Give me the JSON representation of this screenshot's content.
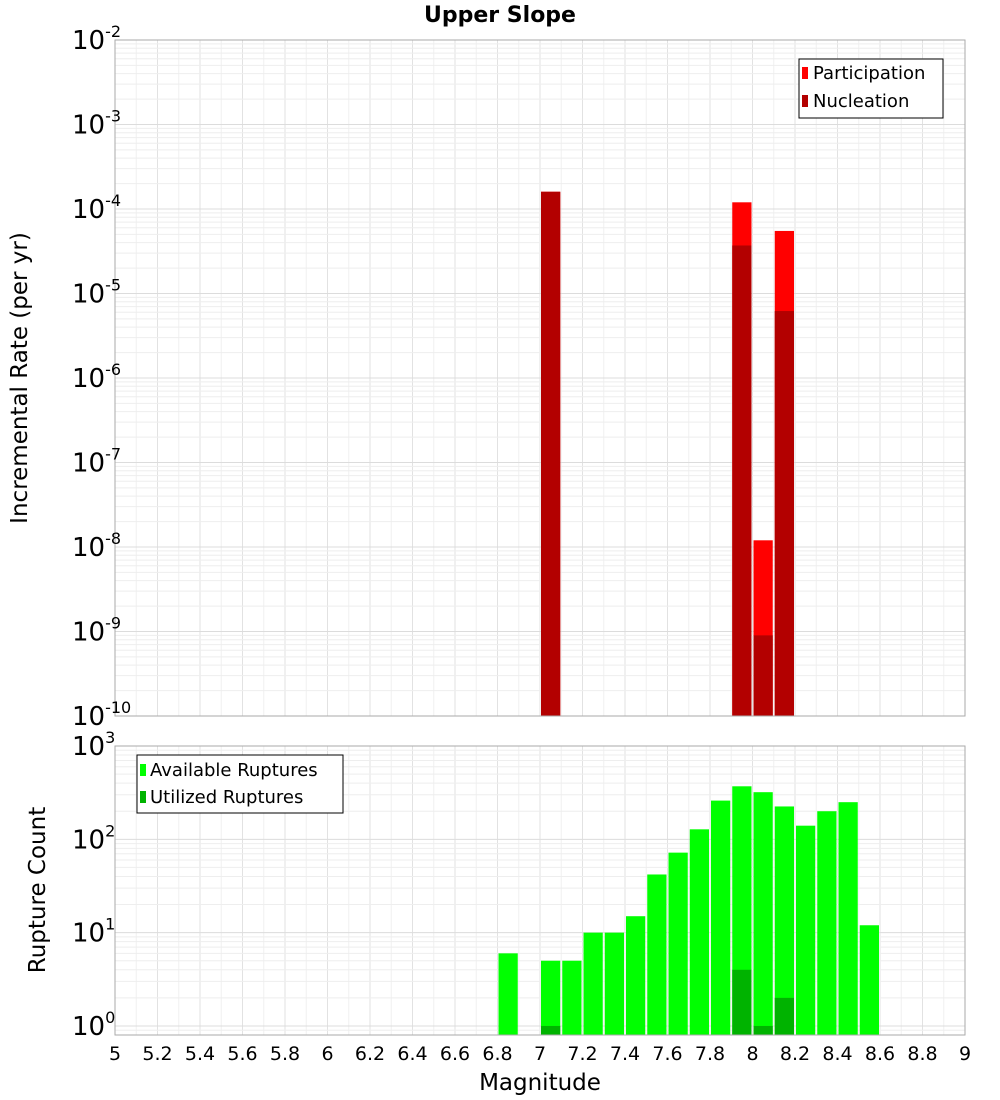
{
  "title": "Upper Slope",
  "chart_data": [
    {
      "type": "bar",
      "panel": "top",
      "title": "Upper Slope",
      "xlabel": "",
      "ylabel": "Incremental Rate (per yr)",
      "yscale": "log",
      "ylim": [
        1e-10,
        0.01
      ],
      "xlim": [
        5,
        9
      ],
      "bar_width": 0.1,
      "grid": true,
      "legend_position": "top-right",
      "y_ticks": [
        {
          "base": "10",
          "exp": "-2"
        },
        {
          "base": "10",
          "exp": "-3"
        },
        {
          "base": "10",
          "exp": "-4"
        },
        {
          "base": "10",
          "exp": "-5"
        },
        {
          "base": "10",
          "exp": "-6"
        },
        {
          "base": "10",
          "exp": "-7"
        },
        {
          "base": "10",
          "exp": "-8"
        },
        {
          "base": "10",
          "exp": "-9"
        },
        {
          "base": "10",
          "exp": "-10"
        }
      ],
      "series": [
        {
          "name": "Participation",
          "color": "#ff0000",
          "x": [
            7.05,
            7.95,
            8.05,
            8.15
          ],
          "values": [
            0.00016,
            0.00012,
            1.2e-08,
            5.5e-05
          ]
        },
        {
          "name": "Nucleation",
          "color": "#b30000",
          "x": [
            7.05,
            7.95,
            8.05,
            8.15
          ],
          "values": [
            0.00016,
            3.7e-05,
            9e-10,
            6.2e-06
          ]
        }
      ]
    },
    {
      "type": "bar",
      "panel": "bottom",
      "xlabel": "Magnitude",
      "ylabel": "Rupture Count",
      "yscale": "log",
      "ylim": [
        0.8,
        1000
      ],
      "xlim": [
        5,
        9
      ],
      "bar_width": 0.1,
      "grid": true,
      "legend_position": "top-left",
      "x_ticks": [
        "5",
        "5.2",
        "5.4",
        "5.6",
        "5.8",
        "6",
        "6.2",
        "6.4",
        "6.6",
        "6.8",
        "7",
        "7.2",
        "7.4",
        "7.6",
        "7.8",
        "8",
        "8.2",
        "8.4",
        "8.6",
        "8.8",
        "9"
      ],
      "y_ticks": [
        {
          "base": "10",
          "exp": "3"
        },
        {
          "base": "10",
          "exp": "2"
        },
        {
          "base": "10",
          "exp": "1"
        },
        {
          "base": "10",
          "exp": "0"
        }
      ],
      "series": [
        {
          "name": "Available Ruptures",
          "color": "#00ff00",
          "x": [
            6.85,
            7.05,
            7.15,
            7.25,
            7.35,
            7.45,
            7.55,
            7.65,
            7.75,
            7.85,
            7.95,
            8.05,
            8.15,
            8.25,
            8.35,
            8.45,
            8.55
          ],
          "values": [
            6,
            5,
            5,
            10,
            10,
            15,
            42,
            72,
            128,
            260,
            370,
            320,
            225,
            140,
            200,
            250,
            12
          ]
        },
        {
          "name": "Utilized Ruptures",
          "color": "#00b300",
          "x": [
            7.05,
            7.95,
            8.05,
            8.15
          ],
          "values": [
            1,
            4,
            1,
            2
          ]
        }
      ]
    }
  ]
}
